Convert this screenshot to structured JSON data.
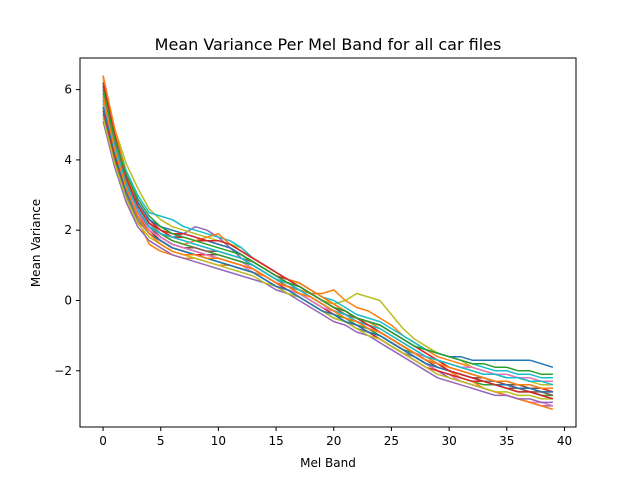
{
  "chart_data": {
    "type": "line",
    "title": "Mean Variance Per Mel Band for all car files",
    "xlabel": "Mel Band",
    "ylabel": "Mean Variance",
    "xlim": [
      -2,
      41
    ],
    "ylim": [
      -3.6,
      6.9
    ],
    "x_ticks": [
      0,
      5,
      10,
      15,
      20,
      25,
      30,
      35,
      40
    ],
    "x_tick_labels": [
      "0",
      "5",
      "10",
      "15",
      "20",
      "25",
      "30",
      "35",
      "40"
    ],
    "y_ticks": [
      -2,
      0,
      2,
      4,
      6
    ],
    "y_tick_labels": [
      "−2",
      "0",
      "2",
      "4",
      "6"
    ],
    "grid": false,
    "legend": "none",
    "x": [
      0,
      1,
      2,
      3,
      4,
      5,
      6,
      7,
      8,
      9,
      10,
      11,
      12,
      13,
      14,
      15,
      16,
      17,
      18,
      19,
      20,
      21,
      22,
      23,
      24,
      25,
      26,
      27,
      28,
      29,
      30,
      31,
      32,
      33,
      34,
      35,
      36,
      37,
      38,
      39
    ],
    "series": [
      {
        "color": "#1f77b4",
        "values": [
          6.1,
          4.6,
          3.4,
          2.6,
          2.1,
          1.8,
          1.6,
          1.5,
          1.4,
          1.3,
          1.2,
          1.1,
          1.0,
          0.9,
          0.7,
          0.5,
          0.4,
          0.3,
          0.1,
          -0.1,
          -0.3,
          -0.4,
          -0.6,
          -0.7,
          -0.9,
          -1.1,
          -1.3,
          -1.5,
          -1.7,
          -1.8,
          -2.0,
          -2.1,
          -2.2,
          -2.3,
          -2.4,
          -2.5,
          -2.5,
          -2.6,
          -2.7,
          -2.8
        ]
      },
      {
        "color": "#ff7f0e",
        "values": [
          5.9,
          4.3,
          3.1,
          2.3,
          1.6,
          1.4,
          1.3,
          1.2,
          1.2,
          1.1,
          1.0,
          1.0,
          0.9,
          0.8,
          0.7,
          0.5,
          0.4,
          0.3,
          0.2,
          0.2,
          0.3,
          0.0,
          -0.2,
          -0.3,
          -0.5,
          -0.7,
          -1.0,
          -1.2,
          -1.4,
          -1.6,
          -1.7,
          -1.8,
          -1.9,
          -2.0,
          -2.1,
          -2.1,
          -2.2,
          -2.2,
          -2.3,
          -2.3
        ]
      },
      {
        "color": "#2ca02c",
        "values": [
          5.2,
          4.0,
          3.0,
          2.3,
          1.9,
          1.7,
          1.5,
          1.4,
          1.3,
          1.2,
          1.1,
          1.0,
          0.9,
          0.8,
          0.6,
          0.4,
          0.2,
          0.1,
          -0.1,
          -0.3,
          -0.5,
          -0.6,
          -0.8,
          -0.9,
          -1.0,
          -1.2,
          -1.4,
          -1.6,
          -1.8,
          -2.0,
          -2.1,
          -2.2,
          -2.3,
          -2.4,
          -2.4,
          -2.5,
          -2.6,
          -2.6,
          -2.7,
          -2.7
        ]
      },
      {
        "color": "#d62728",
        "values": [
          6.4,
          4.8,
          3.6,
          2.8,
          2.3,
          2.0,
          1.8,
          1.8,
          1.7,
          1.7,
          1.6,
          1.5,
          1.3,
          1.1,
          0.9,
          0.7,
          0.6,
          0.5,
          0.3,
          0.1,
          -0.1,
          -0.3,
          -0.5,
          -0.6,
          -0.7,
          -0.9,
          -1.1,
          -1.3,
          -1.5,
          -1.7,
          -1.9,
          -2.0,
          -2.1,
          -2.2,
          -2.3,
          -2.4,
          -2.5,
          -2.5,
          -2.6,
          -2.6
        ]
      },
      {
        "color": "#9467bd",
        "values": [
          5.7,
          4.5,
          3.3,
          2.5,
          2.1,
          1.9,
          1.8,
          1.9,
          2.1,
          2.0,
          1.8,
          1.5,
          1.2,
          1.0,
          0.8,
          0.6,
          0.5,
          0.4,
          0.2,
          0.0,
          -0.2,
          -0.4,
          -0.6,
          -0.8,
          -1.0,
          -1.2,
          -1.4,
          -1.6,
          -1.8,
          -2.0,
          -2.2,
          -2.3,
          -2.4,
          -2.5,
          -2.6,
          -2.7,
          -2.8,
          -2.9,
          -3.0,
          -3.0
        ]
      },
      {
        "color": "#8c564b",
        "values": [
          5.5,
          4.2,
          3.2,
          2.5,
          2.1,
          1.8,
          1.6,
          1.5,
          1.4,
          1.3,
          1.3,
          1.2,
          1.1,
          1.0,
          0.8,
          0.6,
          0.5,
          0.3,
          0.1,
          -0.1,
          -0.3,
          -0.5,
          -0.6,
          -0.8,
          -1.0,
          -1.2,
          -1.4,
          -1.6,
          -1.8,
          -1.9,
          -2.0,
          -2.1,
          -2.2,
          -2.3,
          -2.4,
          -2.5,
          -2.5,
          -2.6,
          -2.6,
          -2.7
        ]
      },
      {
        "color": "#e377c2",
        "values": [
          6.0,
          4.7,
          3.5,
          2.7,
          2.2,
          1.9,
          1.7,
          1.6,
          1.5,
          1.4,
          1.3,
          1.2,
          1.1,
          0.9,
          0.7,
          0.5,
          0.4,
          0.2,
          0.0,
          -0.2,
          -0.4,
          -0.5,
          -0.7,
          -0.8,
          -1.0,
          -1.2,
          -1.4,
          -1.6,
          -1.8,
          -2.0,
          -2.1,
          -2.3,
          -2.4,
          -2.5,
          -2.6,
          -2.7,
          -2.8,
          -2.9,
          -2.9,
          -3.0
        ]
      },
      {
        "color": "#7f7f7f",
        "values": [
          5.3,
          4.1,
          3.0,
          2.3,
          1.9,
          1.7,
          1.5,
          1.4,
          1.3,
          1.2,
          1.1,
          1.0,
          0.9,
          0.8,
          0.6,
          0.4,
          0.3,
          0.1,
          -0.1,
          -0.3,
          -0.5,
          -0.6,
          -0.8,
          -0.9,
          -1.1,
          -1.3,
          -1.5,
          -1.6,
          -1.8,
          -1.9,
          -2.0,
          -2.1,
          -2.2,
          -2.3,
          -2.3,
          -2.4,
          -2.4,
          -2.5,
          -2.5,
          -2.6
        ]
      },
      {
        "color": "#bcbd22",
        "values": [
          6.3,
          4.9,
          3.9,
          3.2,
          2.6,
          2.3,
          2.1,
          2.0,
          1.9,
          1.8,
          1.7,
          1.6,
          1.5,
          1.2,
          1.0,
          0.8,
          0.6,
          0.4,
          0.2,
          0.0,
          -0.1,
          0.0,
          0.2,
          0.1,
          0.0,
          -0.4,
          -0.8,
          -1.1,
          -1.3,
          -1.5,
          -1.6,
          -1.7,
          -1.9,
          -2.0,
          -2.1,
          -2.2,
          -2.2,
          -2.3,
          -2.4,
          -2.4
        ]
      },
      {
        "color": "#17becf",
        "values": [
          6.2,
          4.8,
          3.7,
          3.0,
          2.5,
          2.4,
          2.3,
          2.1,
          2.0,
          1.9,
          1.8,
          1.7,
          1.5,
          1.2,
          1.0,
          0.8,
          0.6,
          0.5,
          0.3,
          0.1,
          0.0,
          -0.2,
          -0.4,
          -0.5,
          -0.6,
          -0.8,
          -1.0,
          -1.2,
          -1.4,
          -1.5,
          -1.6,
          -1.7,
          -1.8,
          -1.9,
          -2.0,
          -2.0,
          -2.1,
          -2.1,
          -2.2,
          -2.2
        ]
      },
      {
        "color": "#1f77b4",
        "values": [
          6.0,
          4.6,
          3.5,
          2.8,
          2.3,
          2.1,
          2.0,
          1.9,
          1.8,
          1.7,
          1.6,
          1.5,
          1.3,
          1.1,
          0.9,
          0.7,
          0.5,
          0.4,
          0.2,
          0.0,
          -0.2,
          -0.3,
          -0.5,
          -0.6,
          -0.7,
          -0.9,
          -1.1,
          -1.3,
          -1.4,
          -1.5,
          -1.6,
          -1.6,
          -1.7,
          -1.7,
          -1.7,
          -1.7,
          -1.7,
          -1.7,
          -1.8,
          -1.9
        ]
      },
      {
        "color": "#ff7f0e",
        "values": [
          6.4,
          4.9,
          3.6,
          2.7,
          2.2,
          1.9,
          1.7,
          1.6,
          1.7,
          1.8,
          1.9,
          1.6,
          1.4,
          1.2,
          1.0,
          0.8,
          0.6,
          0.5,
          0.3,
          0.1,
          -0.1,
          -0.3,
          -0.5,
          -0.6,
          -0.8,
          -1.0,
          -1.2,
          -1.4,
          -1.6,
          -1.8,
          -2.0,
          -2.2,
          -2.3,
          -2.5,
          -2.6,
          -2.7,
          -2.8,
          -2.9,
          -3.0,
          -3.1
        ]
      },
      {
        "color": "#2ca02c",
        "values": [
          5.8,
          4.4,
          3.3,
          2.6,
          2.1,
          1.9,
          1.7,
          1.6,
          1.5,
          1.4,
          1.3,
          1.2,
          1.1,
          1.0,
          0.8,
          0.6,
          0.4,
          0.2,
          0.0,
          -0.2,
          -0.4,
          -0.5,
          -0.7,
          -0.8,
          -1.0,
          -1.2,
          -1.4,
          -1.5,
          -1.6,
          -1.7,
          -1.8,
          -1.9,
          -2.0,
          -2.1,
          -2.1,
          -2.2,
          -2.2,
          -2.3,
          -2.3,
          -2.3
        ]
      },
      {
        "color": "#d62728",
        "values": [
          5.4,
          4.1,
          3.1,
          2.4,
          2.0,
          1.7,
          1.5,
          1.4,
          1.3,
          1.3,
          1.2,
          1.1,
          1.0,
          0.9,
          0.7,
          0.5,
          0.3,
          0.2,
          0.0,
          -0.2,
          -0.4,
          -0.6,
          -0.7,
          -0.9,
          -1.1,
          -1.3,
          -1.5,
          -1.7,
          -1.9,
          -2.0,
          -2.1,
          -2.2,
          -2.3,
          -2.3,
          -2.4,
          -2.4,
          -2.5,
          -2.5,
          -2.5,
          -2.6
        ]
      },
      {
        "color": "#9467bd",
        "values": [
          5.1,
          3.8,
          2.8,
          2.1,
          1.7,
          1.5,
          1.3,
          1.2,
          1.1,
          1.0,
          0.9,
          0.8,
          0.7,
          0.6,
          0.5,
          0.3,
          0.2,
          0.0,
          -0.2,
          -0.4,
          -0.6,
          -0.7,
          -0.9,
          -1.0,
          -1.2,
          -1.4,
          -1.6,
          -1.8,
          -2.0,
          -2.2,
          -2.3,
          -2.4,
          -2.5,
          -2.6,
          -2.7,
          -2.7,
          -2.8,
          -2.8,
          -2.9,
          -2.9
        ]
      },
      {
        "color": "#8c564b",
        "values": [
          6.1,
          4.7,
          3.5,
          2.6,
          2.1,
          1.8,
          1.6,
          1.5,
          1.5,
          1.4,
          1.4,
          1.3,
          1.2,
          1.1,
          0.9,
          0.7,
          0.5,
          0.4,
          0.2,
          0.0,
          -0.2,
          -0.4,
          -0.5,
          -0.7,
          -0.9,
          -1.1,
          -1.3,
          -1.5,
          -1.7,
          -1.9,
          -2.0,
          -2.1,
          -2.2,
          -2.2,
          -2.3,
          -2.4,
          -2.4,
          -2.5,
          -2.5,
          -2.5
        ]
      },
      {
        "color": "#e377c2",
        "values": [
          5.6,
          4.3,
          3.2,
          2.5,
          2.0,
          1.8,
          1.6,
          1.5,
          1.4,
          1.3,
          1.2,
          1.1,
          1.0,
          0.8,
          0.6,
          0.4,
          0.3,
          0.2,
          0.0,
          -0.2,
          -0.3,
          -0.5,
          -0.6,
          -0.8,
          -0.9,
          -1.1,
          -1.3,
          -1.5,
          -1.6,
          -1.7,
          -1.8,
          -1.9,
          -1.9,
          -2.0,
          -2.1,
          -2.1,
          -2.2,
          -2.2,
          -2.3,
          -2.3
        ]
      },
      {
        "color": "#7f7f7f",
        "values": [
          5.9,
          4.5,
          3.4,
          2.7,
          2.2,
          1.9,
          1.8,
          1.7,
          1.6,
          1.5,
          1.4,
          1.3,
          1.2,
          1.0,
          0.8,
          0.6,
          0.4,
          0.3,
          0.1,
          -0.1,
          -0.3,
          -0.4,
          -0.6,
          -0.7,
          -0.9,
          -1.1,
          -1.3,
          -1.5,
          -1.7,
          -1.8,
          -1.9,
          -2.0,
          -2.1,
          -2.2,
          -2.3,
          -2.3,
          -2.4,
          -2.4,
          -2.5,
          -2.5
        ]
      },
      {
        "color": "#bcbd22",
        "values": [
          5.2,
          3.9,
          2.9,
          2.2,
          1.8,
          1.6,
          1.4,
          1.3,
          1.2,
          1.1,
          1.0,
          0.9,
          0.8,
          0.7,
          0.5,
          0.4,
          0.2,
          0.1,
          -0.1,
          -0.3,
          -0.5,
          -0.6,
          -0.8,
          -1.0,
          -1.1,
          -1.3,
          -1.5,
          -1.7,
          -1.9,
          -2.1,
          -2.2,
          -2.3,
          -2.4,
          -2.5,
          -2.6,
          -2.6,
          -2.7,
          -2.7,
          -2.8,
          -2.8
        ]
      },
      {
        "color": "#17becf",
        "values": [
          5.7,
          4.4,
          3.3,
          2.6,
          2.1,
          1.9,
          1.8,
          1.7,
          1.6,
          1.5,
          1.4,
          1.3,
          1.2,
          1.0,
          0.8,
          0.6,
          0.5,
          0.3,
          0.1,
          -0.1,
          -0.3,
          -0.4,
          -0.6,
          -0.7,
          -0.8,
          -1.0,
          -1.2,
          -1.4,
          -1.6,
          -1.7,
          -1.8,
          -1.9,
          -2.0,
          -2.1,
          -2.1,
          -2.2,
          -2.2,
          -2.3,
          -2.3,
          -2.4
        ]
      },
      {
        "color": "#1f77b4",
        "values": [
          5.5,
          4.2,
          3.1,
          2.4,
          1.9,
          1.7,
          1.5,
          1.4,
          1.3,
          1.2,
          1.1,
          1.0,
          0.9,
          0.8,
          0.6,
          0.4,
          0.3,
          0.1,
          -0.1,
          -0.3,
          -0.4,
          -0.6,
          -0.7,
          -0.9,
          -1.0,
          -1.2,
          -1.4,
          -1.6,
          -1.8,
          -1.9,
          -2.0,
          -2.1,
          -2.2,
          -2.3,
          -2.4,
          -2.4,
          -2.5,
          -2.5,
          -2.6,
          -2.6
        ]
      },
      {
        "color": "#d62728",
        "values": [
          6.2,
          4.7,
          3.5,
          2.7,
          2.2,
          2.0,
          1.9,
          1.9,
          1.8,
          1.7,
          1.7,
          1.6,
          1.4,
          1.2,
          1.0,
          0.8,
          0.6,
          0.4,
          0.2,
          0.0,
          -0.2,
          -0.3,
          -0.5,
          -0.7,
          -0.9,
          -1.1,
          -1.3,
          -1.5,
          -1.7,
          -1.8,
          -2.0,
          -2.1,
          -2.2,
          -2.3,
          -2.4,
          -2.5,
          -2.6,
          -2.6,
          -2.7,
          -2.8
        ]
      },
      {
        "color": "#2ca02c",
        "values": [
          6.0,
          4.6,
          3.6,
          2.9,
          2.4,
          2.1,
          1.9,
          1.8,
          1.7,
          1.6,
          1.5,
          1.4,
          1.3,
          1.1,
          0.9,
          0.7,
          0.5,
          0.4,
          0.2,
          0.0,
          -0.2,
          -0.3,
          -0.5,
          -0.6,
          -0.7,
          -0.9,
          -1.1,
          -1.3,
          -1.4,
          -1.5,
          -1.6,
          -1.7,
          -1.8,
          -1.8,
          -1.9,
          -1.9,
          -2.0,
          -2.0,
          -2.1,
          -2.1
        ]
      },
      {
        "color": "#ff7f0e",
        "values": [
          5.8,
          4.3,
          3.2,
          2.4,
          1.9,
          1.6,
          1.4,
          1.3,
          1.3,
          1.2,
          1.2,
          1.1,
          1.0,
          0.9,
          0.7,
          0.5,
          0.4,
          0.2,
          0.1,
          -0.1,
          -0.3,
          -0.5,
          -0.6,
          -0.8,
          -0.9,
          -1.1,
          -1.3,
          -1.5,
          -1.7,
          -1.8,
          -1.9,
          -2.0,
          -2.1,
          -2.2,
          -2.3,
          -2.3,
          -2.4,
          -2.4,
          -2.5,
          -2.5
        ]
      }
    ]
  }
}
